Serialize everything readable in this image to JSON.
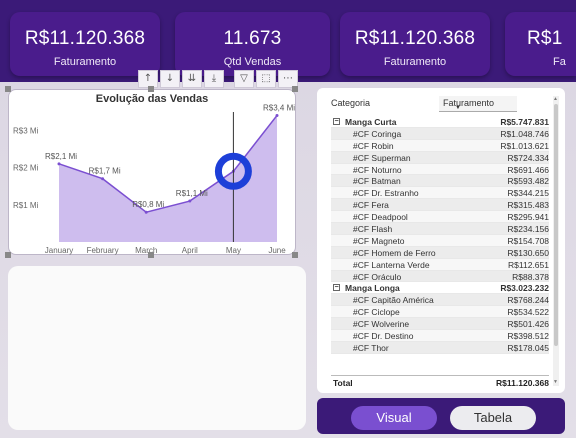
{
  "kpis": [
    {
      "value": "R$11.120.368",
      "label": "Faturamento"
    },
    {
      "value": "11.673",
      "label": "Qtd Vendas"
    },
    {
      "value": "R$11.120.368",
      "label": "Faturamento"
    },
    {
      "value": "R$1",
      "label": "Fa"
    }
  ],
  "toolbar": {
    "buttons": [
      {
        "icon": "drill-up-icon",
        "glyph": "↑"
      },
      {
        "icon": "drill-down-icon",
        "glyph": "↓"
      },
      {
        "icon": "go-next-level-icon",
        "glyph": "⇊"
      },
      {
        "icon": "expand-hierarchy-icon",
        "glyph": "⤓"
      },
      {
        "icon": "filter-icon",
        "glyph": "▽"
      },
      {
        "icon": "focus-mode-icon",
        "glyph": "⬚"
      },
      {
        "icon": "more-options-icon",
        "glyph": "⋯"
      }
    ]
  },
  "chart_data": {
    "type": "area",
    "title": "Evolução das Vendas",
    "categories": [
      "January",
      "February",
      "March",
      "April",
      "May",
      "June"
    ],
    "values": [
      2.1,
      1.7,
      0.8,
      1.1,
      1.9,
      3.4
    ],
    "data_labels": [
      "R$2,1 Mi",
      "R$1,7 Mi",
      "R$0,8 Mi",
      "R$1,1 Mi",
      "",
      "R$3,4 Mi"
    ],
    "y_ticks": [
      {
        "value": 1,
        "label": "R$1 Mi"
      },
      {
        "value": 2,
        "label": "R$2 Mi"
      },
      {
        "value": 3,
        "label": "R$3 Mi"
      }
    ],
    "ylim": [
      0,
      3.6
    ],
    "grid": false,
    "colors": {
      "fill": "#c9b6ec",
      "line": "#7b4fd1",
      "cursor": "#1d3fd8",
      "crosshair": "#333333"
    }
  },
  "table": {
    "headers": {
      "category": "Categoria",
      "value": "Faturamento"
    },
    "groups": [
      {
        "name": "Manga Curta",
        "total": "R$5.747.831",
        "rows": [
          {
            "name": "#CF Coringa",
            "value": "R$1.048.746"
          },
          {
            "name": "#CF Robin",
            "value": "R$1.013.621"
          },
          {
            "name": "#CF Superman",
            "value": "R$724.334"
          },
          {
            "name": "#CF Noturno",
            "value": "R$691.466"
          },
          {
            "name": "#CF Batman",
            "value": "R$593.482"
          },
          {
            "name": "#CF Dr. Estranho",
            "value": "R$344.215"
          },
          {
            "name": "#CF Fera",
            "value": "R$315.483"
          },
          {
            "name": "#CF Deadpool",
            "value": "R$295.941"
          },
          {
            "name": "#CF Flash",
            "value": "R$234.156"
          },
          {
            "name": "#CF Magneto",
            "value": "R$154.708"
          },
          {
            "name": "#CF Homem de Ferro",
            "value": "R$130.650"
          },
          {
            "name": "#CF Lanterna Verde",
            "value": "R$112.651"
          },
          {
            "name": "#CF Oráculo",
            "value": "R$88.378"
          }
        ]
      },
      {
        "name": "Manga Longa",
        "total": "R$3.023.232",
        "rows": [
          {
            "name": "#CF Capitão América",
            "value": "R$768.244"
          },
          {
            "name": "#CF Ciclope",
            "value": "R$534.522"
          },
          {
            "name": "#CF Wolverine",
            "value": "R$501.426"
          },
          {
            "name": "#CF Dr. Destino",
            "value": "R$398.512"
          },
          {
            "name": "#CF Thor",
            "value": "R$178.045"
          }
        ]
      }
    ],
    "total_label": "Total",
    "total_value": "R$11.120.368"
  },
  "buttons": {
    "visual": "Visual",
    "tabela": "Tabela"
  }
}
